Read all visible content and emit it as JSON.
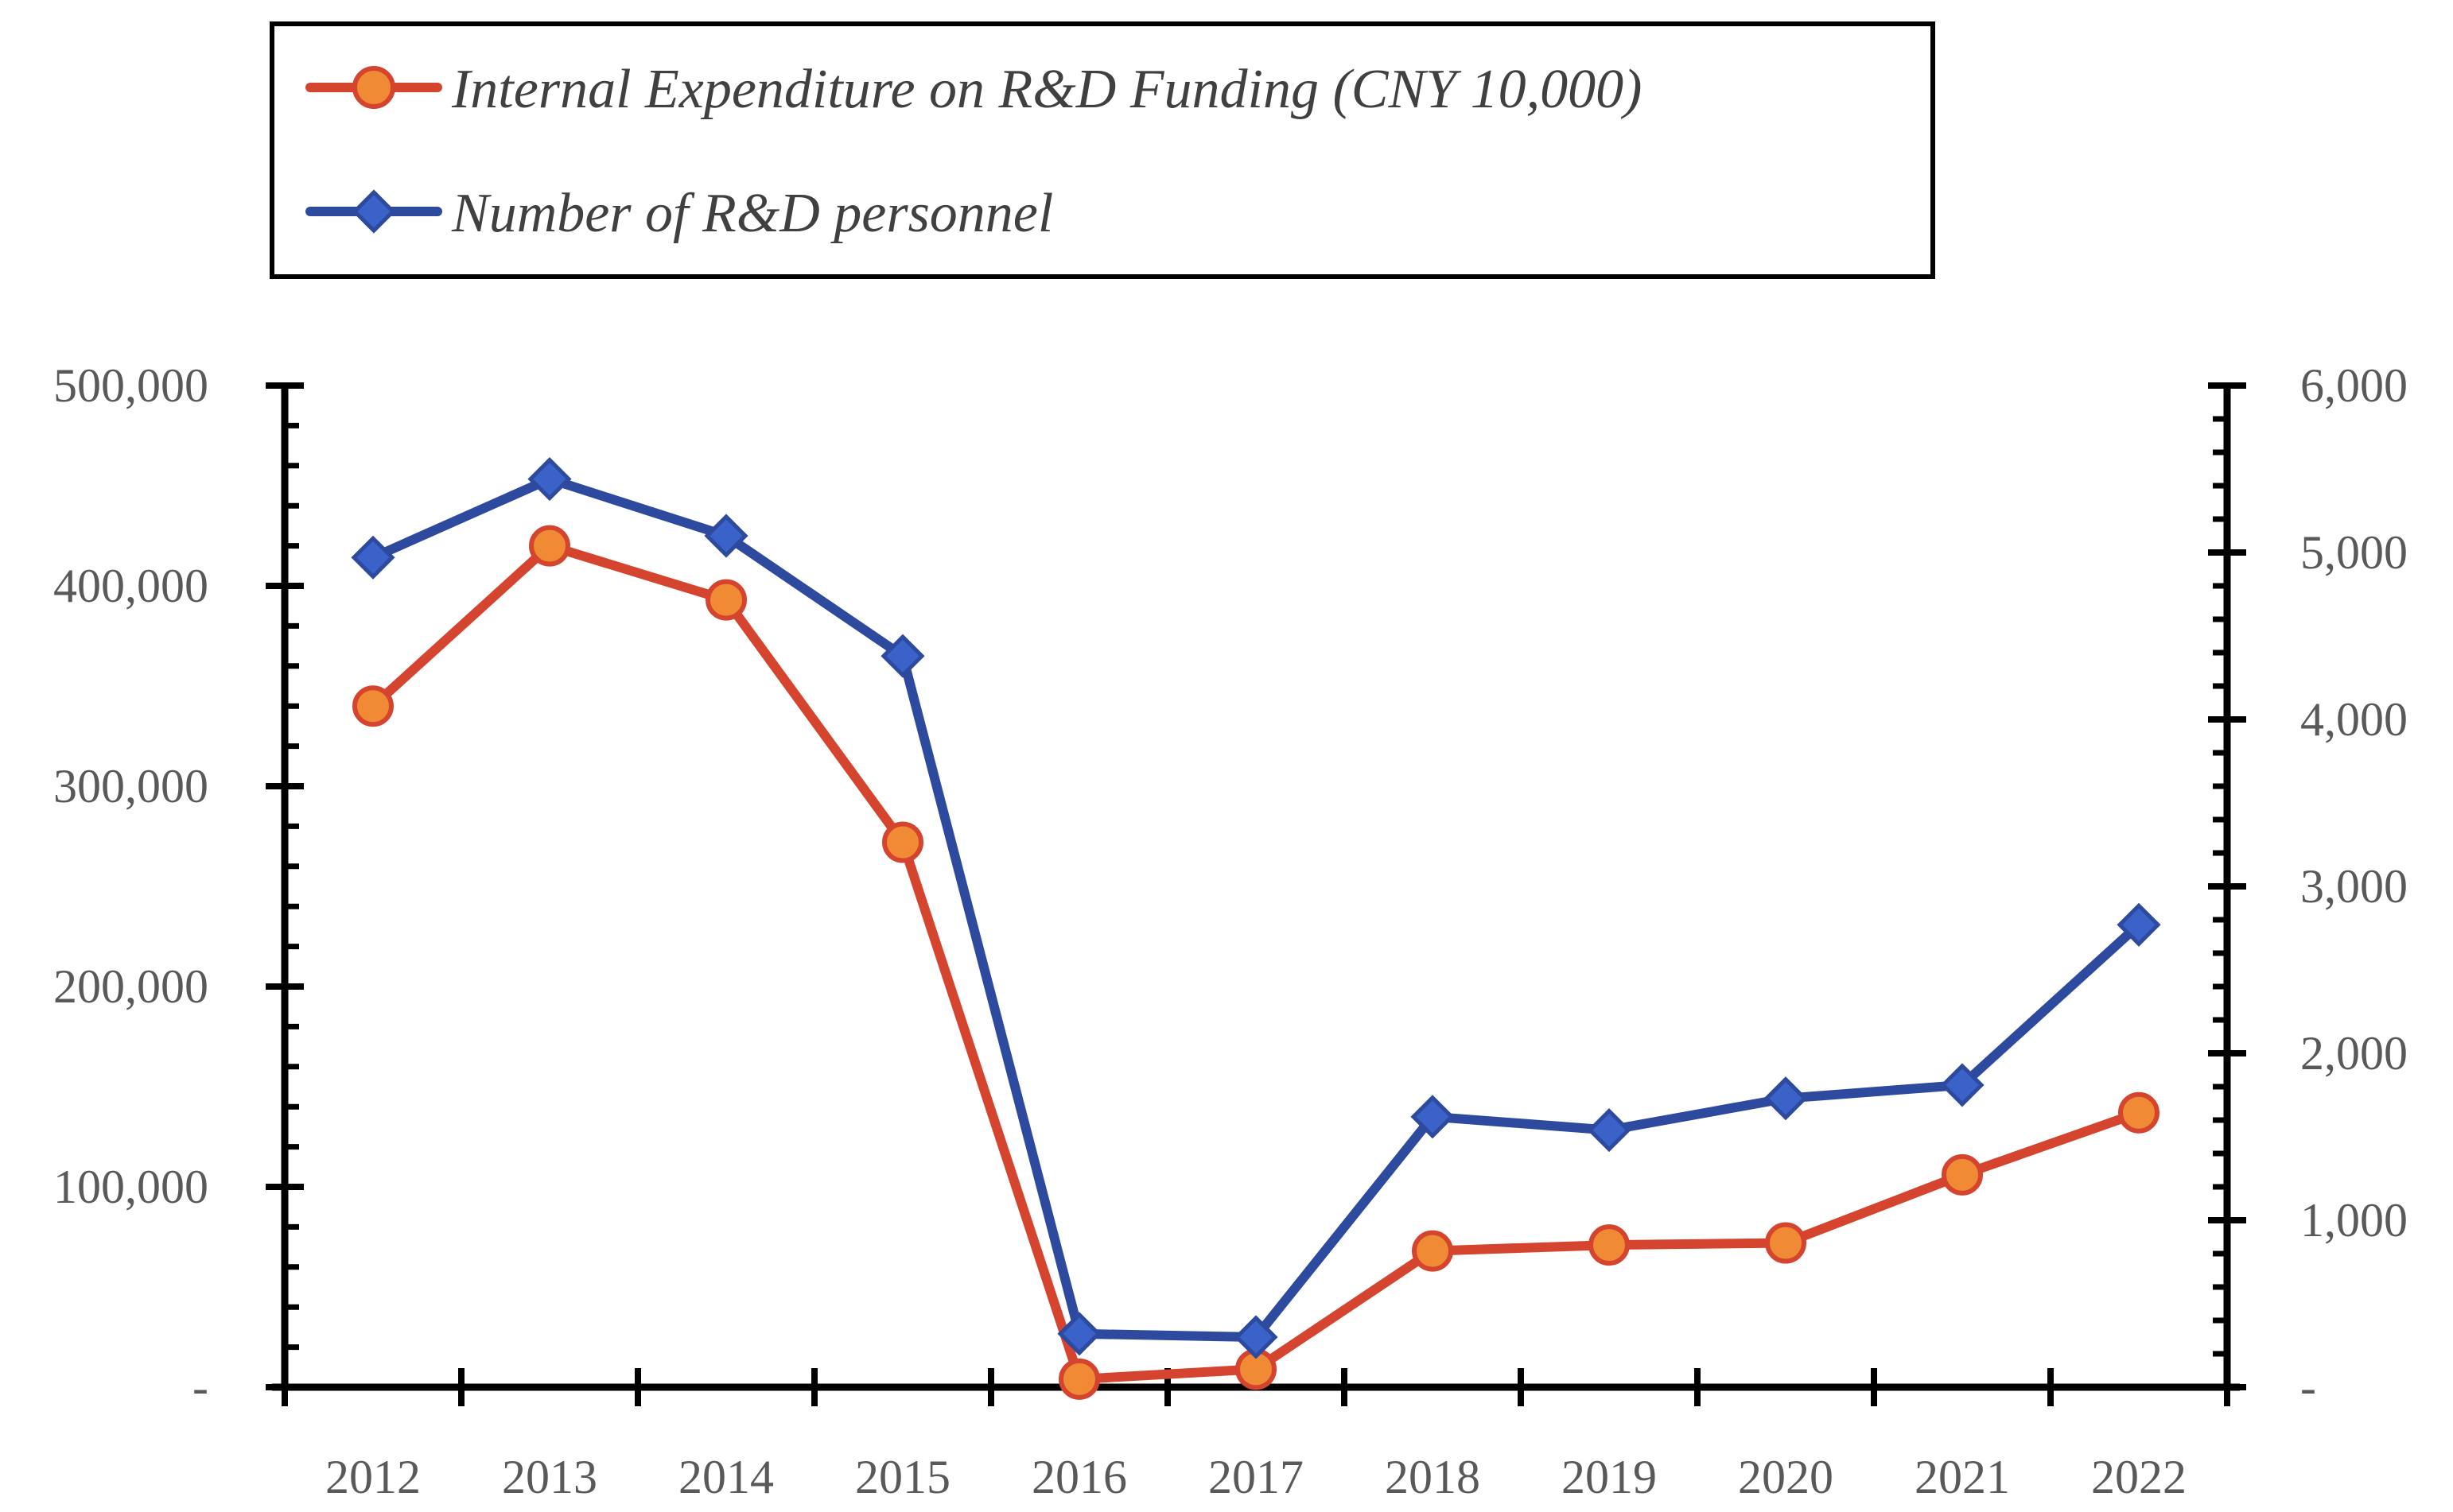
{
  "chart_data": {
    "type": "line",
    "categories": [
      "2012",
      "2013",
      "2014",
      "2015",
      "2016",
      "2017",
      "2018",
      "2019",
      "2020",
      "2021",
      "2022"
    ],
    "series": [
      {
        "name": "Internal Expenditure on R&D Funding (CNY 10,000)",
        "axis": "left",
        "marker": "circle",
        "line_color": "#d4442e",
        "marker_color": "#f08a34",
        "values": [
          340000,
          420000,
          393000,
          272000,
          4000,
          9000,
          68000,
          71000,
          72000,
          106000,
          137000
        ]
      },
      {
        "name": "Number of R&D personnel",
        "axis": "right",
        "marker": "diamond",
        "line_color": "#2e4a9e",
        "marker_color": "#3a62c9",
        "values": [
          4970,
          5440,
          5100,
          4380,
          320,
          300,
          1620,
          1540,
          1730,
          1810,
          2770
        ]
      }
    ],
    "y_left": {
      "range": [
        0,
        500000
      ],
      "ticks": [
        0,
        100000,
        200000,
        300000,
        400000,
        500000
      ],
      "tick_labels": [
        "-",
        "100,000",
        "200,000",
        "300,000",
        "400,000",
        "500,000"
      ]
    },
    "y_right": {
      "range": [
        0,
        6000
      ],
      "ticks": [
        0,
        1000,
        2000,
        3000,
        4000,
        5000,
        6000
      ],
      "tick_labels": [
        "-",
        "1,000",
        "2,000",
        "3,000",
        "4,000",
        "5,000",
        "6,000"
      ]
    },
    "title": "",
    "xlabel": "",
    "ylabel": "",
    "grid": false,
    "legend_position": "top"
  }
}
